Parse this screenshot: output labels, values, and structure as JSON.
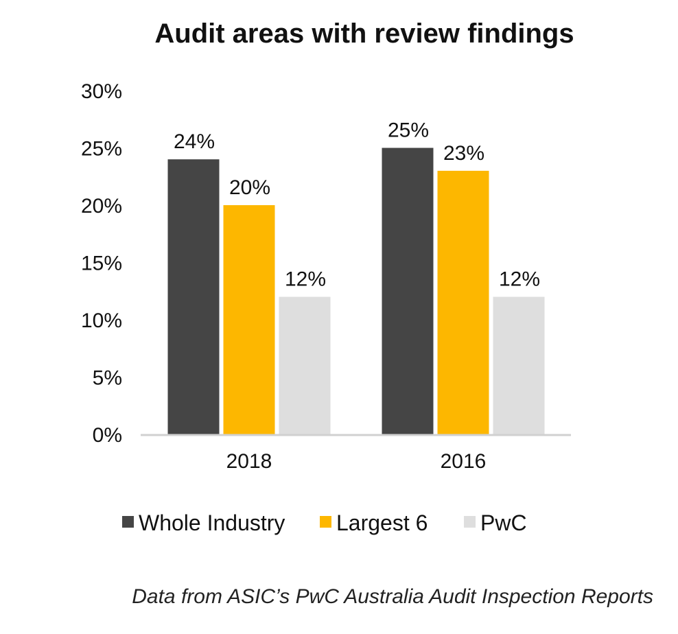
{
  "chart_data": {
    "type": "bar",
    "title": "Audit areas with review findings",
    "categories": [
      "2018",
      "2016"
    ],
    "series": [
      {
        "name": "Whole Industry",
        "values": [
          24,
          25
        ],
        "labels": [
          "24%",
          "25%"
        ],
        "color": "#454545"
      },
      {
        "name": "Largest 6",
        "values": [
          20,
          23
        ],
        "labels": [
          "20%",
          "23%"
        ],
        "color": "#FDB700"
      },
      {
        "name": "PwC",
        "values": [
          12,
          12
        ],
        "labels": [
          "12%",
          "12%"
        ],
        "color": "#DEDEDE"
      }
    ],
    "ylim": [
      0,
      30
    ],
    "yticks": [
      0,
      5,
      10,
      15,
      20,
      25,
      30
    ],
    "ytick_labels": [
      "0%",
      "5%",
      "10%",
      "15%",
      "20%",
      "25%",
      "30%"
    ],
    "xlabel": "",
    "ylabel": "",
    "grid": false,
    "legend_position": "bottom",
    "axis_color": "#D0D0D0"
  },
  "source_note": "Data from ASIC’s PwC Australia Audit Inspection Reports"
}
